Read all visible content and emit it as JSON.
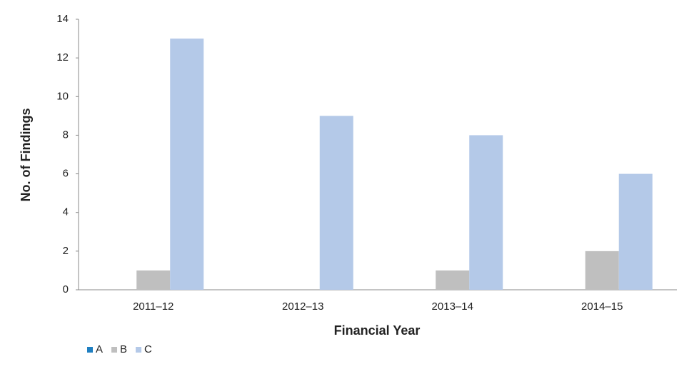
{
  "chart_data": {
    "type": "bar",
    "x_label": "Financial Year",
    "y_label": "No. of Findings",
    "categories": [
      "2011–12",
      "2012–13",
      "2013–14",
      "2014–15"
    ],
    "series": [
      {
        "name": "A",
        "color": "#1f7fc1",
        "values": [
          0,
          0,
          0,
          0
        ]
      },
      {
        "name": "B",
        "color": "#bfbfbf",
        "values": [
          1,
          0,
          1,
          2
        ]
      },
      {
        "name": "C",
        "color": "#b4c9e8",
        "values": [
          13,
          9,
          8,
          6
        ]
      }
    ],
    "ylim": [
      0,
      14
    ],
    "yticks": [
      0,
      2,
      4,
      6,
      8,
      10,
      12,
      14
    ],
    "grid": false,
    "legend": "bottom-left"
  }
}
